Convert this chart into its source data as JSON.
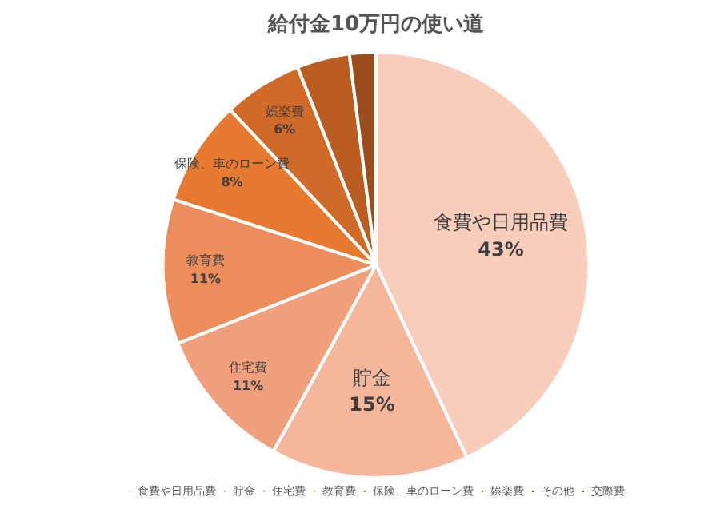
{
  "chart_data": {
    "type": "pie",
    "title": "給付金10万円の使い道",
    "categories": [
      "食費や日用品費",
      "貯金",
      "住宅費",
      "教育費",
      "保険、車のローン費",
      "娯楽費",
      "その他",
      "交際費"
    ],
    "values": [
      43,
      15,
      11,
      11,
      8,
      6,
      4,
      2
    ],
    "value_labels": [
      "43%",
      "15%",
      "11%",
      "11%",
      "8%",
      "6%",
      null,
      null
    ],
    "colors": [
      "#f8cdbb",
      "#f4b79b",
      "#f0a07c",
      "#ec8d5c",
      "#e77a31",
      "#d06a28",
      "#b95d22",
      "#9a4d1c"
    ],
    "legend": "bottom"
  }
}
